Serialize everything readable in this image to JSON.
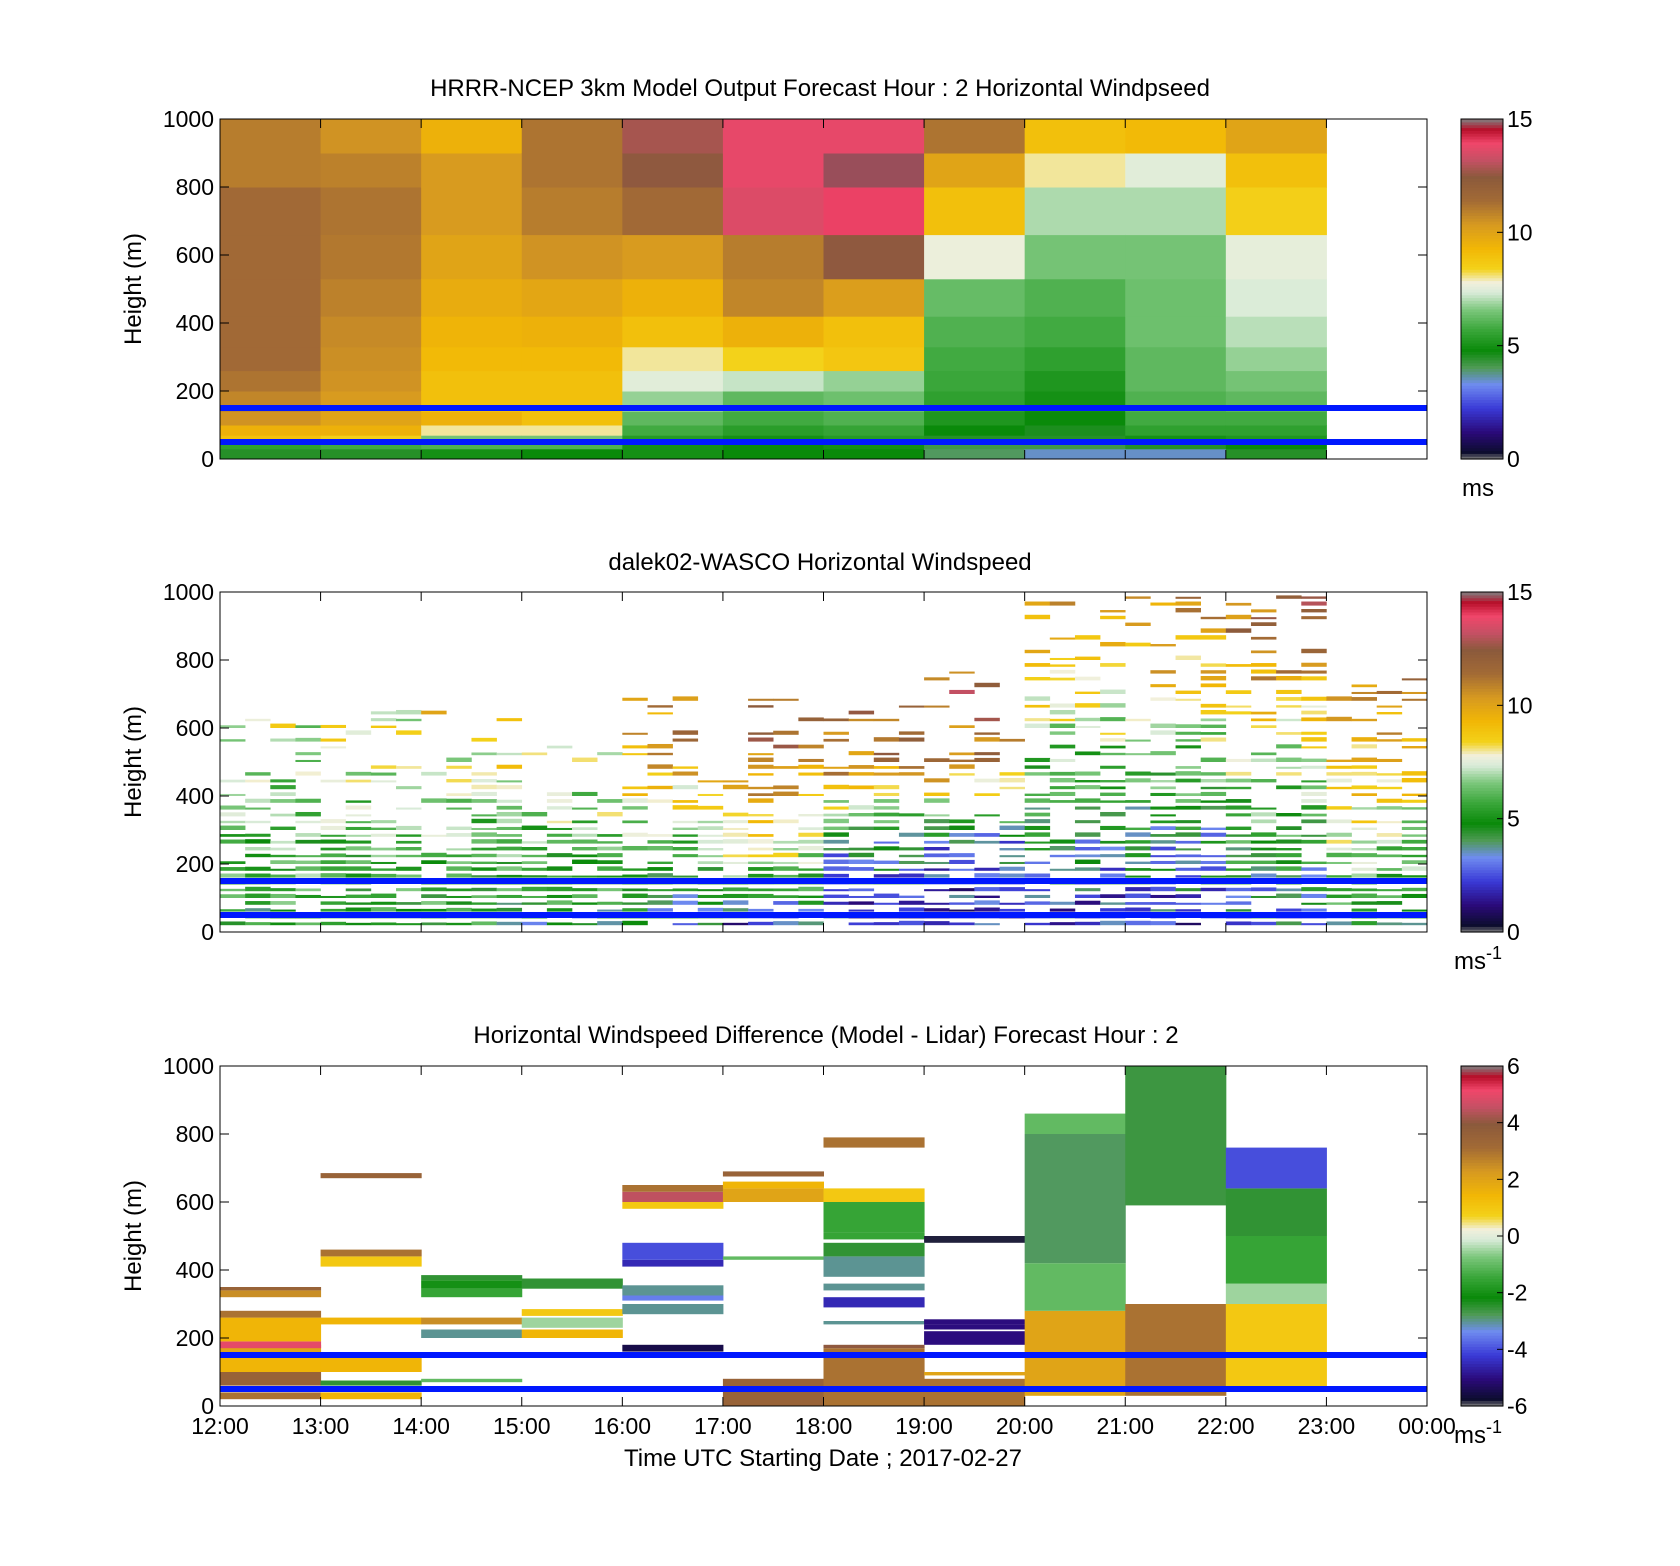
{
  "figure": {
    "xlabel": "Time UTC  Starting Date ; 2017-02-27"
  },
  "chart_data": [
    {
      "type": "heatmap",
      "title": "HRRR-NCEP 3km Model Output   Forecast Hour : 2 Horizontal Windpseed",
      "xlabel": "",
      "ylabel": "Height (m)",
      "xlim": [
        12,
        24
      ],
      "ylim": [
        0,
        1000
      ],
      "xticks": [
        12,
        13,
        14,
        15,
        16,
        17,
        18,
        19,
        20,
        21,
        22,
        23,
        24
      ],
      "xtick_labels": [
        "",
        "",
        "",
        "",
        "",
        "",
        "",
        "",
        "",
        "",
        "",
        "",
        ""
      ],
      "yticks": [
        0,
        200,
        400,
        600,
        800,
        1000
      ],
      "ytick_labels": [
        "0",
        "200",
        "400",
        "600",
        "800",
        "1000"
      ],
      "colorbar": {
        "min": 0,
        "max": 15,
        "ticks": [
          "0",
          "5",
          "10",
          "15"
        ],
        "unit": "ms"
      },
      "hlines_m": [
        50,
        150
      ],
      "hline_color": "#0018ff",
      "columns_start_hour": [
        12,
        13,
        14,
        15,
        16,
        17,
        18,
        19,
        20,
        21,
        22
      ],
      "column_width_h": 1,
      "levels_m": [
        [
          0,
          30
        ],
        [
          30,
          50
        ],
        [
          50,
          70
        ],
        [
          70,
          100
        ],
        [
          100,
          140
        ],
        [
          140,
          200
        ],
        [
          200,
          260
        ],
        [
          260,
          330
        ],
        [
          330,
          420
        ],
        [
          420,
          530
        ],
        [
          530,
          660
        ],
        [
          660,
          800
        ],
        [
          800,
          900
        ],
        [
          900,
          1000
        ]
      ],
      "values": [
        [
          4.5,
          5.5,
          9.0,
          9.5,
          10.5,
          10.8,
          11.2,
          11.5,
          11.5,
          11.5,
          11.5,
          11.5,
          11.0,
          11.0
        ],
        [
          4.5,
          5.8,
          8.5,
          9.5,
          10.0,
          10.3,
          10.5,
          10.6,
          10.7,
          10.9,
          11.1,
          11.2,
          10.9,
          10.5
        ],
        [
          5.0,
          6.0,
          6.5,
          8.0,
          9.5,
          9.0,
          9.0,
          9.2,
          9.4,
          9.7,
          10.0,
          10.3,
          10.3,
          9.5
        ],
        [
          4.8,
          6.0,
          6.5,
          8.0,
          9.0,
          9.0,
          9.0,
          9.2,
          9.5,
          9.9,
          10.5,
          11.0,
          11.2,
          11.2
        ],
        [
          5.0,
          5.0,
          5.3,
          5.8,
          6.2,
          6.8,
          7.5,
          8.0,
          9.0,
          9.5,
          10.3,
          11.5,
          12.5,
          12.8
        ],
        [
          4.8,
          4.8,
          5.0,
          5.4,
          5.8,
          6.2,
          7.2,
          8.4,
          9.5,
          10.8,
          11.0,
          13.6,
          13.8,
          13.8
        ],
        [
          4.8,
          5.0,
          5.3,
          5.6,
          6.0,
          6.4,
          6.8,
          8.8,
          9.0,
          10.2,
          12.5,
          14.0,
          14.8,
          13.8
        ],
        [
          4.0,
          4.2,
          4.5,
          4.8,
          5.2,
          5.5,
          5.7,
          5.8,
          6.0,
          6.3,
          7.7,
          9.0,
          10.0,
          11.2
        ],
        [
          3.5,
          4.2,
          4.5,
          4.6,
          4.8,
          5.0,
          5.2,
          5.5,
          5.8,
          6.0,
          6.5,
          7.0,
          8.0,
          9.0
        ],
        [
          3.5,
          4.5,
          5.0,
          5.5,
          5.8,
          6.0,
          6.2,
          6.2,
          6.4,
          6.4,
          6.5,
          7.0,
          7.5,
          9.2
        ],
        [
          4.5,
          4.8,
          5.2,
          5.5,
          5.8,
          6.2,
          6.5,
          6.8,
          7.1,
          7.4,
          7.6,
          8.5,
          9.0,
          10.0
        ]
      ]
    },
    {
      "type": "heatmap",
      "title": "dalek02-WASCO  Horizontal Windspeed",
      "xlabel": "",
      "ylabel": "Height (m)",
      "xlim": [
        12,
        24
      ],
      "ylim": [
        0,
        1000
      ],
      "xticks": [
        12,
        13,
        14,
        15,
        16,
        17,
        18,
        19,
        20,
        21,
        22,
        23,
        24
      ],
      "xtick_labels": [
        "",
        "",
        "",
        "",
        "",
        "",
        "",
        "",
        "",
        "",
        "",
        "",
        ""
      ],
      "yticks": [
        0,
        200,
        400,
        600,
        800,
        1000
      ],
      "ytick_labels": [
        "0",
        "200",
        "400",
        "600",
        "800",
        "1000"
      ],
      "colorbar": {
        "min": 0,
        "max": 15,
        "ticks": [
          "0",
          "5",
          "10",
          "15"
        ],
        "unit": "ms",
        "unit_sup": "-1"
      },
      "hlines_m": [
        50,
        150
      ],
      "hline_color": "#0018ff",
      "bins_per_hour": 4,
      "column_max_height_m": [
        640,
        680,
        650,
        560,
        700,
        700,
        700,
        770,
        1000,
        1000,
        1000,
        760
      ],
      "hourly_mean_profile": [
        [
          5,
          6,
          7,
          8,
          9
        ],
        [
          5,
          6,
          7,
          8,
          9
        ],
        [
          5,
          6,
          8,
          9,
          10
        ],
        [
          4.5,
          6,
          8,
          9,
          10
        ],
        [
          4,
          6,
          10,
          11,
          12
        ],
        [
          2,
          8,
          11,
          12,
          13
        ],
        [
          2,
          4,
          11,
          12,
          13
        ],
        [
          2,
          3,
          11,
          12,
          13
        ],
        [
          2,
          4,
          6,
          9,
          10
        ],
        [
          2,
          4,
          6,
          9,
          11
        ],
        [
          3,
          5,
          7,
          10,
          12
        ],
        [
          4,
          7,
          9,
          11,
          13
        ]
      ],
      "profile_heights_m": [
        0,
        250,
        500,
        750,
        1000
      ]
    },
    {
      "type": "heatmap",
      "title": "Horizontal Windspeed Difference (Model - Lidar) Forecast Hour : 2",
      "xlabel": "",
      "ylabel": "Height (m)",
      "xlim": [
        12,
        24
      ],
      "ylim": [
        0,
        1000
      ],
      "xticks": [
        12,
        13,
        14,
        15,
        16,
        17,
        18,
        19,
        20,
        21,
        22,
        23,
        24
      ],
      "xtick_labels": [
        "12:00",
        "13:00",
        "14:00",
        "15:00",
        "16:00",
        "17:00",
        "18:00",
        "19:00",
        "20:00",
        "21:00",
        "22:00",
        "23:00",
        "00:00"
      ],
      "yticks": [
        0,
        200,
        400,
        600,
        800,
        1000
      ],
      "ytick_labels": [
        "0",
        "200",
        "400",
        "600",
        "800",
        "1000"
      ],
      "colorbar": {
        "min": -6,
        "max": 6,
        "ticks": [
          "-6",
          "-4",
          "-2",
          "0",
          "2",
          "4",
          "6"
        ],
        "unit": "ms",
        "unit_sup": "-1"
      },
      "hlines_m": [
        50,
        150
      ],
      "hline_color": "#0018ff",
      "columns": [
        {
          "start": 12,
          "segments": [
            [
              20,
              40,
              3
            ],
            [
              60,
              100,
              3.5
            ],
            [
              100,
              150,
              1.5
            ],
            [
              150,
              180,
              2
            ],
            [
              170,
              190,
              5
            ],
            [
              190,
              260,
              1.5
            ],
            [
              260,
              280,
              3
            ],
            [
              320,
              340,
              2.5
            ],
            [
              340,
              350,
              3.5
            ]
          ]
        },
        {
          "start": 13,
          "segments": [
            [
              20,
              40,
              1.5
            ],
            [
              60,
              75,
              -2.5
            ],
            [
              100,
              150,
              1.5
            ],
            [
              240,
              260,
              1.5
            ],
            [
              410,
              440,
              1
            ],
            [
              440,
              460,
              3
            ],
            [
              670,
              685,
              3.5
            ]
          ]
        },
        {
          "start": 14,
          "segments": [
            [
              70,
              80,
              -1
            ],
            [
              200,
              225,
              -3
            ],
            [
              240,
              260,
              2.5
            ],
            [
              320,
              345,
              -1.5
            ],
            [
              345,
              370,
              -2
            ],
            [
              370,
              385,
              -2.5
            ]
          ]
        },
        {
          "start": 15,
          "segments": [
            [
              200,
              225,
              1.5
            ],
            [
              230,
              260,
              -0.5
            ],
            [
              265,
              285,
              1
            ],
            [
              345,
              375,
              -2.5
            ]
          ]
        },
        {
          "start": 16,
          "segments": [
            [
              160,
              180,
              -5.5
            ],
            [
              270,
              300,
              -3
            ],
            [
              310,
              325,
              -3.5
            ],
            [
              325,
              355,
              -3
            ],
            [
              410,
              430,
              -4.5
            ],
            [
              430,
              480,
              -4
            ],
            [
              580,
              600,
              1
            ],
            [
              600,
              630,
              4.5
            ],
            [
              630,
              650,
              3
            ]
          ]
        },
        {
          "start": 17,
          "segments": [
            [
              0,
              80,
              3.5
            ],
            [
              430,
              440,
              -1
            ],
            [
              600,
              640,
              2
            ],
            [
              640,
              660,
              1.5
            ],
            [
              675,
              690,
              3.5
            ]
          ]
        },
        {
          "start": 18,
          "segments": [
            [
              0,
              170,
              3
            ],
            [
              170,
              180,
              4
            ],
            [
              240,
              250,
              -3
            ],
            [
              290,
              320,
              -4.5
            ],
            [
              340,
              360,
              -3
            ],
            [
              380,
              440,
              -3
            ],
            [
              440,
              480,
              -2.5
            ],
            [
              490,
              510,
              -1.5
            ],
            [
              510,
              600,
              -1.5
            ],
            [
              600,
              640,
              1
            ],
            [
              760,
              790,
              3
            ]
          ]
        },
        {
          "start": 19,
          "segments": [
            [
              0,
              80,
              3
            ],
            [
              90,
              100,
              2
            ],
            [
              180,
              220,
              -5
            ],
            [
              225,
              240,
              -5
            ],
            [
              240,
              255,
              -5
            ],
            [
              480,
              500,
              -5.8
            ]
          ]
        },
        {
          "start": 20,
          "segments": [
            [
              30,
              280,
              2
            ],
            [
              280,
              420,
              -1
            ],
            [
              420,
              800,
              -2.8
            ],
            [
              800,
              860,
              -1
            ]
          ]
        },
        {
          "start": 21,
          "segments": [
            [
              30,
              300,
              3
            ],
            [
              590,
              1000,
              -2.6
            ]
          ]
        },
        {
          "start": 22,
          "segments": [
            [
              50,
              300,
              1
            ],
            [
              300,
              360,
              -0.5
            ],
            [
              360,
              500,
              -1.5
            ],
            [
              500,
              640,
              -2.5
            ],
            [
              640,
              760,
              -4
            ]
          ]
        }
      ]
    }
  ]
}
